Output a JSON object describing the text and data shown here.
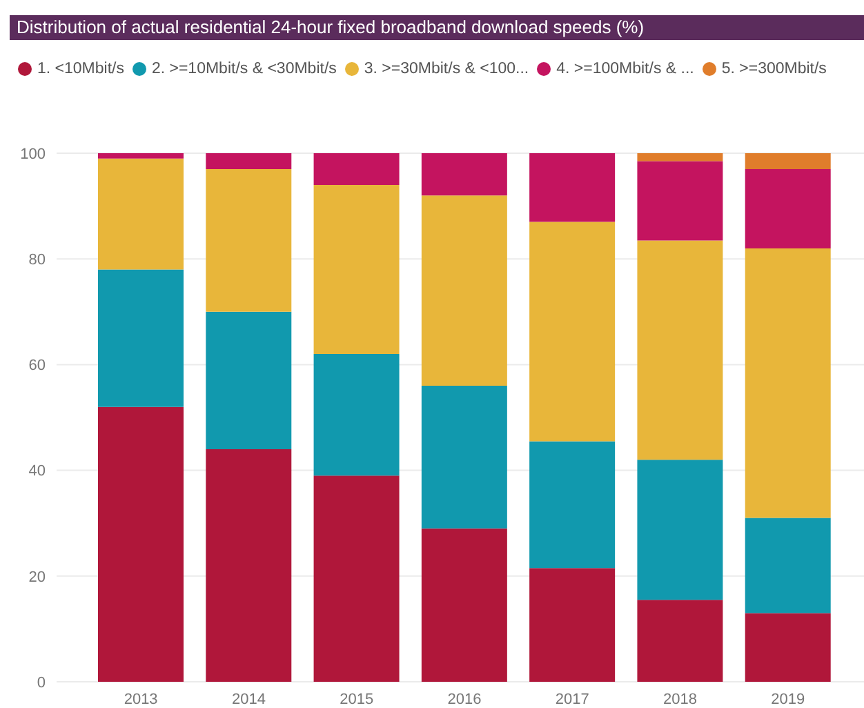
{
  "chart_data": {
    "type": "bar",
    "title": "Distribution of actual residential 24-hour fixed broadband download speeds (%)",
    "categories": [
      "2013",
      "2014",
      "2015",
      "2016",
      "2017",
      "2018",
      "2019"
    ],
    "stacked": true,
    "series": [
      {
        "name": "1. <10Mbit/s",
        "color": "#b0173a",
        "values": [
          52,
          44,
          39,
          29,
          21.5,
          15.5,
          13
        ]
      },
      {
        "name": "2. >=10Mbit/s & <30Mbit/s",
        "color": "#1199ae",
        "values": [
          26,
          26,
          23,
          27,
          24,
          26.5,
          18
        ]
      },
      {
        "name": "3. >=30Mbit/s & <100...",
        "color": "#e8b63a",
        "values": [
          21,
          27,
          32,
          36,
          41.5,
          41.5,
          51
        ]
      },
      {
        "name": "4. >=100Mbit/s & ...",
        "color": "#c4145f",
        "values": [
          1,
          3,
          6,
          8,
          13,
          15,
          15
        ]
      },
      {
        "name": "5. >=300Mbit/s",
        "color": "#e07d2b",
        "values": [
          0,
          0,
          0,
          0,
          0,
          1.5,
          3
        ]
      }
    ],
    "ylim": [
      0,
      100
    ],
    "yticks": [
      0,
      20,
      40,
      60,
      80,
      100
    ],
    "grid": "y",
    "legend": "top left"
  }
}
